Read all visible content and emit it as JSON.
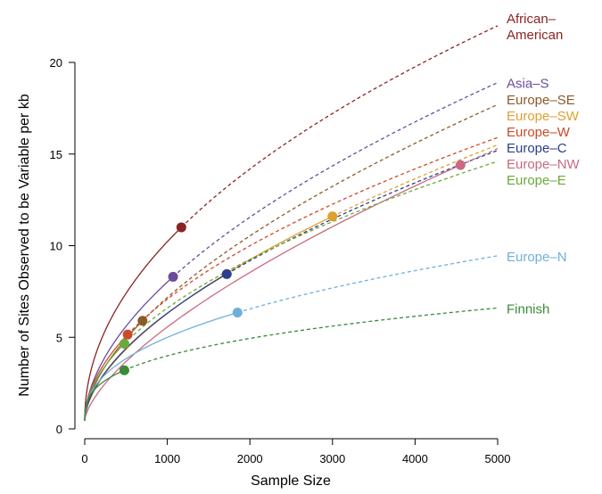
{
  "chart_data": {
    "type": "line",
    "title": "",
    "xlabel": "Sample Size",
    "ylabel": "Number of Sites Observed to be Variable per kb",
    "xlim": [
      0,
      5000
    ],
    "ylim": [
      0,
      20
    ],
    "xticks": [
      0,
      1000,
      2000,
      3000,
      4000,
      5000
    ],
    "yticks": [
      0,
      5,
      10,
      15,
      20
    ],
    "grid": false,
    "legend": "direct labels at right end of each curve",
    "solid_line": "observed (up to sample size)",
    "dashed_line": "extrapolated (to 5000)",
    "series": [
      {
        "name": "African–American",
        "label_lines": [
          "African–",
          "American"
        ],
        "color": "#8B2323",
        "x": [
          0,
          1170,
          5000
        ],
        "y": [
          0.45,
          11.0,
          22.0
        ]
      },
      {
        "name": "Asia–S",
        "label_lines": [
          "Asia–S"
        ],
        "color": "#6B4C9A",
        "x": [
          0,
          1070,
          5000
        ],
        "y": [
          0.45,
          8.3,
          18.9
        ]
      },
      {
        "name": "Europe–SE",
        "label_lines": [
          "Europe–SE"
        ],
        "color": "#8B5A2B",
        "x": [
          0,
          700,
          5000
        ],
        "y": [
          0.45,
          5.9,
          17.7
        ]
      },
      {
        "name": "Europe–SW",
        "label_lines": [
          "Europe–SW"
        ],
        "color": "#E0A030",
        "x": [
          0,
          3000,
          5000
        ],
        "y": [
          0.45,
          11.6,
          15.5
        ]
      },
      {
        "name": "Europe–W",
        "label_lines": [
          "Europe–W"
        ],
        "color": "#CC4A2A",
        "x": [
          0,
          520,
          5000
        ],
        "y": [
          0.45,
          5.15,
          15.9
        ]
      },
      {
        "name": "Europe–C",
        "label_lines": [
          "Europe–C"
        ],
        "color": "#2E3E8C",
        "x": [
          0,
          1720,
          5000
        ],
        "y": [
          0.45,
          8.45,
          15.2
        ]
      },
      {
        "name": "Europe–NW",
        "label_lines": [
          "Europe–NW"
        ],
        "color": "#C96A80",
        "x": [
          0,
          4550,
          5000
        ],
        "y": [
          0.45,
          14.4,
          15.3
        ]
      },
      {
        "name": "Europe–E",
        "label_lines": [
          "Europe–E"
        ],
        "color": "#6AAA3A",
        "x": [
          0,
          480,
          5000
        ],
        "y": [
          0.45,
          4.65,
          14.6
        ]
      },
      {
        "name": "Europe–N",
        "label_lines": [
          "Europe–N"
        ],
        "color": "#6FB0DA",
        "x": [
          0,
          1850,
          5000
        ],
        "y": [
          0.45,
          6.35,
          9.45
        ]
      },
      {
        "name": "Finnish",
        "label_lines": [
          "Finnish"
        ],
        "color": "#3A8A3A",
        "x": [
          0,
          480,
          5000
        ],
        "y": [
          0.45,
          3.2,
          6.6
        ]
      }
    ]
  }
}
